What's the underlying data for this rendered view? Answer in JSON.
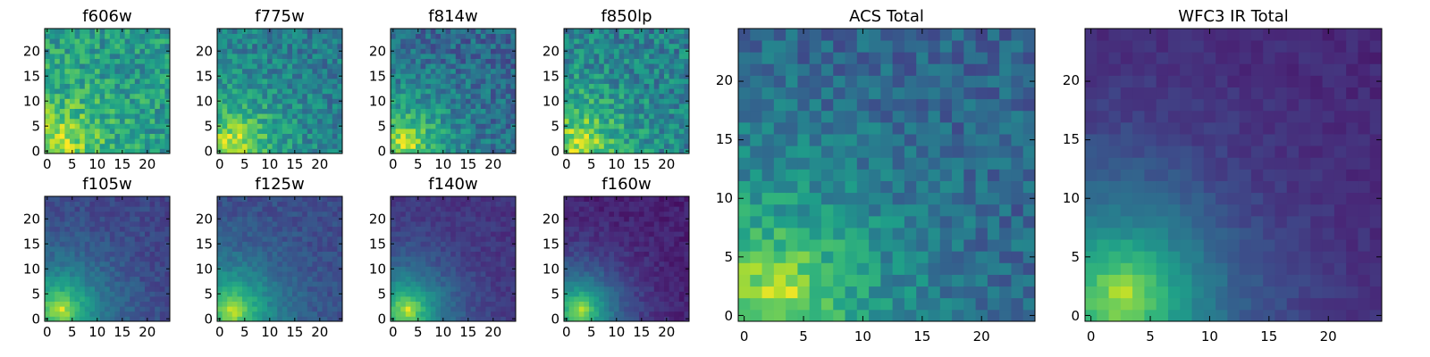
{
  "chart_data": [
    {
      "type": "heatmap",
      "title": "f606w",
      "x_ticks": [
        "0",
        "5",
        "10",
        "15",
        "20"
      ],
      "y_ticks": [
        "0",
        "5",
        "10",
        "15",
        "20"
      ],
      "xlim": [
        -0.5,
        24.5
      ],
      "ylim": [
        -0.5,
        24.5
      ],
      "colormap": "viridis",
      "params": {
        "floor": 0.52,
        "fall": 0.11,
        "spread": 0.13,
        "noise": 0.17,
        "seed": 11
      }
    },
    {
      "type": "heatmap",
      "title": "f775w",
      "x_ticks": [
        "0",
        "5",
        "10",
        "15",
        "20"
      ],
      "y_ticks": [
        "0",
        "5",
        "10",
        "15",
        "20"
      ],
      "xlim": [
        -0.5,
        24.5
      ],
      "ylim": [
        -0.5,
        24.5
      ],
      "colormap": "viridis",
      "params": {
        "floor": 0.4,
        "fall": 0.11,
        "spread": 0.12,
        "noise": 0.15,
        "seed": 23
      }
    },
    {
      "type": "heatmap",
      "title": "f814w",
      "x_ticks": [
        "0",
        "5",
        "10",
        "15",
        "20"
      ],
      "y_ticks": [
        "0",
        "5",
        "10",
        "15",
        "20"
      ],
      "xlim": [
        -0.5,
        24.5
      ],
      "ylim": [
        -0.5,
        24.5
      ],
      "colormap": "viridis",
      "params": {
        "floor": 0.32,
        "fall": 0.12,
        "spread": 0.12,
        "noise": 0.15,
        "seed": 37
      }
    },
    {
      "type": "heatmap",
      "title": "f850lp",
      "x_ticks": [
        "0",
        "5",
        "10",
        "15",
        "20"
      ],
      "y_ticks": [
        "0",
        "5",
        "10",
        "15",
        "20"
      ],
      "xlim": [
        -0.5,
        24.5
      ],
      "ylim": [
        -0.5,
        24.5
      ],
      "colormap": "viridis",
      "params": {
        "floor": 0.42,
        "fall": 0.12,
        "spread": 0.12,
        "noise": 0.17,
        "seed": 41
      }
    },
    {
      "type": "heatmap",
      "title": "f105w",
      "x_ticks": [
        "0",
        "5",
        "10",
        "15",
        "20"
      ],
      "y_ticks": [
        "0",
        "5",
        "10",
        "15",
        "20"
      ],
      "xlim": [
        -0.5,
        24.5
      ],
      "ylim": [
        -0.5,
        24.5
      ],
      "colormap": "viridis",
      "params": {
        "floor": 0.2,
        "fall": 0.13,
        "spread": 0.13,
        "noise": 0.06,
        "seed": 53
      }
    },
    {
      "type": "heatmap",
      "title": "f125w",
      "x_ticks": [
        "0",
        "5",
        "10",
        "15",
        "20"
      ],
      "y_ticks": [
        "0",
        "5",
        "10",
        "15",
        "20"
      ],
      "xlim": [
        -0.5,
        24.5
      ],
      "ylim": [
        -0.5,
        24.5
      ],
      "colormap": "viridis",
      "params": {
        "floor": 0.22,
        "fall": 0.13,
        "spread": 0.13,
        "noise": 0.06,
        "seed": 61
      }
    },
    {
      "type": "heatmap",
      "title": "f140w",
      "x_ticks": [
        "0",
        "5",
        "10",
        "15",
        "20"
      ],
      "y_ticks": [
        "0",
        "5",
        "10",
        "15",
        "20"
      ],
      "xlim": [
        -0.5,
        24.5
      ],
      "ylim": [
        -0.5,
        24.5
      ],
      "colormap": "viridis",
      "params": {
        "floor": 0.14,
        "fall": 0.14,
        "spread": 0.13,
        "noise": 0.05,
        "seed": 71
      }
    },
    {
      "type": "heatmap",
      "title": "f160w",
      "x_ticks": [
        "0",
        "5",
        "10",
        "15",
        "20"
      ],
      "y_ticks": [
        "0",
        "5",
        "10",
        "15",
        "20"
      ],
      "xlim": [
        -0.5,
        24.5
      ],
      "ylim": [
        -0.5,
        24.5
      ],
      "colormap": "viridis",
      "params": {
        "floor": 0.08,
        "fall": 0.15,
        "spread": 0.13,
        "noise": 0.05,
        "seed": 83
      }
    },
    {
      "type": "heatmap",
      "title": "ACS Total",
      "x_ticks": [
        "0",
        "5",
        "10",
        "15",
        "20"
      ],
      "y_ticks": [
        "0",
        "5",
        "10",
        "15",
        "20"
      ],
      "xlim": [
        -0.5,
        24.5
      ],
      "ylim": [
        -0.5,
        24.5
      ],
      "colormap": "viridis",
      "params": {
        "floor": 0.3,
        "fall": 0.11,
        "spread": 0.12,
        "noise": 0.12,
        "seed": 97
      }
    },
    {
      "type": "heatmap",
      "title": "WFC3 IR Total",
      "x_ticks": [
        "0",
        "5",
        "10",
        "15",
        "20"
      ],
      "y_ticks": [
        "0",
        "5",
        "10",
        "15",
        "20"
      ],
      "xlim": [
        -0.5,
        24.5
      ],
      "ylim": [
        -0.5,
        24.5
      ],
      "colormap": "viridis",
      "params": {
        "floor": 0.1,
        "fall": 0.12,
        "spread": 0.15,
        "noise": 0.04,
        "seed": 101
      }
    }
  ]
}
